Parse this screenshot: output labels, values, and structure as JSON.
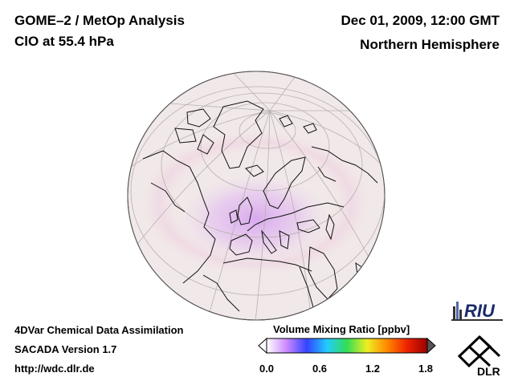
{
  "header": {
    "title_line1": "GOME–2 / MetOp Analysis",
    "title_line2": "ClO at 55.4 hPa",
    "datetime": "Dec 01, 2009, 12:00 GMT",
    "region": "Northern Hemisphere"
  },
  "footer": {
    "line1": "4DVar Chemical Data Assimilation",
    "line2": "SACADA Version 1.7",
    "line3": "http://wdc.dlr.de"
  },
  "colorbar": {
    "title": "Volume Mixing Ratio [ppbv]",
    "ticks": [
      "0.0",
      "0.6",
      "1.2",
      "1.8"
    ],
    "colors": [
      "#ffffff",
      "#cc88ff",
      "#3344ff",
      "#22ccff",
      "#33dd55",
      "#eeee22",
      "#ff8800",
      "#ee2200",
      "#990000"
    ]
  },
  "logos": {
    "riu": "RIU",
    "dlr": "DLR"
  },
  "colors": {
    "globe_fill": "#f1e9e9",
    "highlight": "#d7a6ee",
    "coast": "#111111",
    "grid": "#b9b0b0"
  }
}
